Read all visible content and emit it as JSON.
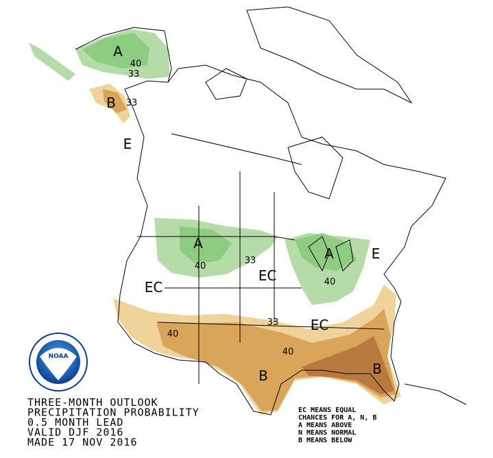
{
  "title_block": {
    "lines": [
      "THREE-MONTH OUTLOOK",
      "PRECIPITATION PROBABILITY",
      "0.5 MONTH LEAD",
      "VALID DJF 2016",
      "MADE 17 NOV 2016"
    ]
  },
  "legend": {
    "lines": [
      "EC MEANS EQUAL",
      "CHANCES FOR A, N, B",
      "A MEANS ABOVE",
      "N MEANS NORMAL",
      "B MEANS BELOW"
    ]
  },
  "logo": {
    "text": "NOAA"
  },
  "map_labels": [
    "A",
    "40",
    "33",
    "B",
    "33",
    "E",
    "A",
    "40",
    "33",
    "EC",
    "EC",
    "A",
    "40",
    "E",
    "33",
    "EC",
    "40",
    "40",
    "B",
    "B"
  ]
}
